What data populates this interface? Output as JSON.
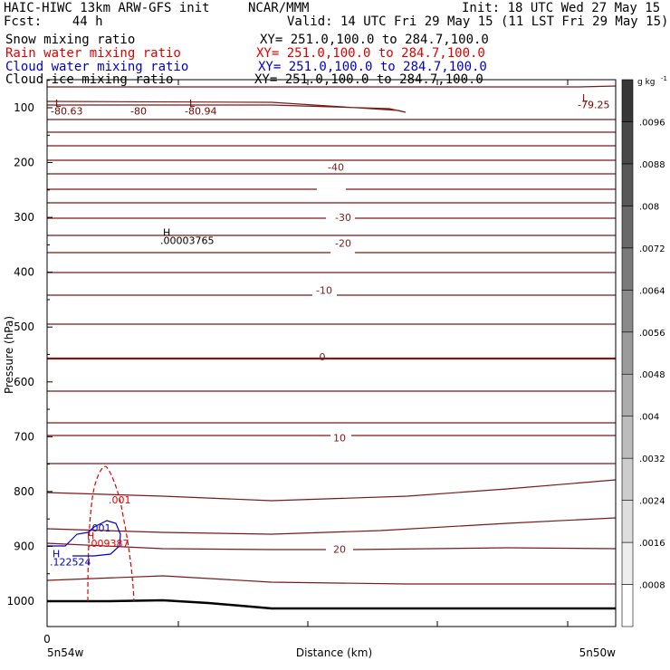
{
  "header": {
    "model": "HAIC-HIWC 13km ARW-GFS init",
    "org": "NCAR/MMM",
    "init": "Init: 18 UTC Wed 27 May 15",
    "fcst": "Fcst:    44 h",
    "valid": "Valid: 14 UTC Fri 29 May 15 (11 LST Fri 29 May 15)"
  },
  "fields": [
    {
      "name": "Snow mixing ratio",
      "xy": "XY= 251.0,100.0 to 284.7,100.0",
      "color": "#000000"
    },
    {
      "name": "Rain water mixing ratio",
      "xy": "XY= 251.0,100.0 to 284.7,100.0",
      "color": "#e00000"
    },
    {
      "name": "Cloud water mixing ratio",
      "xy": "XY= 251.0,100.0 to 284.7,100.0",
      "color": "#0000c8"
    },
    {
      "name": "Cloud ice mixing ratio",
      "xy": "XY= 251.0,100.0 to 284.7,100.0",
      "color": "#000000"
    }
  ],
  "chart_data": {
    "type": "cross-section",
    "xlabel": "Distance (km)",
    "ylabel": "Pressure (hPa)",
    "x_tick_labels": [
      "0"
    ],
    "x_left_label": "5n54w",
    "x_right_label": "5n50w",
    "y_ticks": [
      100,
      200,
      300,
      400,
      500,
      600,
      700,
      800,
      900,
      1000
    ],
    "y_range": [
      50,
      1040
    ],
    "colorbar": {
      "unit": "g kg",
      "unit_exp": "-1",
      "labels": [
        ".0008",
        ".0016",
        ".0024",
        ".0032",
        ".004",
        ".0048",
        ".0056",
        ".0064",
        ".0072",
        ".008",
        ".0088",
        ".0096"
      ]
    },
    "contour_labels": [
      {
        "text": "-40",
        "p": 208
      },
      {
        "text": "-30",
        "p": 300
      },
      {
        "text": "-20",
        "p": 347
      },
      {
        "text": "-10",
        "p": 433
      },
      {
        "text": "0",
        "p": 554
      },
      {
        "text": "10",
        "p": 702
      },
      {
        "text": "20",
        "p": 905
      }
    ],
    "annotations": [
      {
        "text": "L",
        "p": 92,
        "color": "#7a0000"
      },
      {
        "text": "-80.63",
        "p": 106,
        "color": "#7a0000"
      },
      {
        "text": "-80",
        "p": 106,
        "color": "#7a0000"
      },
      {
        "text": "L",
        "p": 92,
        "color": "#7a0000"
      },
      {
        "text": "-80.94",
        "p": 106,
        "color": "#7a0000"
      },
      {
        "text": "L",
        "p": 82,
        "color": "#7a0000"
      },
      {
        "text": "-79.25",
        "p": 94,
        "color": "#7a0000"
      },
      {
        "text": "H",
        "p": 327,
        "color": "#000000"
      },
      {
        "text": ".00003765",
        "p": 342,
        "color": "#000000"
      },
      {
        "text": ".001",
        "p": 815,
        "color": "#e00000"
      },
      {
        "text": ".001",
        "p": 866,
        "color": "#0000c8"
      },
      {
        "text": "H",
        "p": 880,
        "color": "#e00000"
      },
      {
        "text": ".009387",
        "p": 894,
        "color": "#e00000"
      },
      {
        "text": "H",
        "p": 913,
        "color": "#0000c8"
      },
      {
        "text": ".122524",
        "p": 928,
        "color": "#0000c8"
      }
    ]
  }
}
